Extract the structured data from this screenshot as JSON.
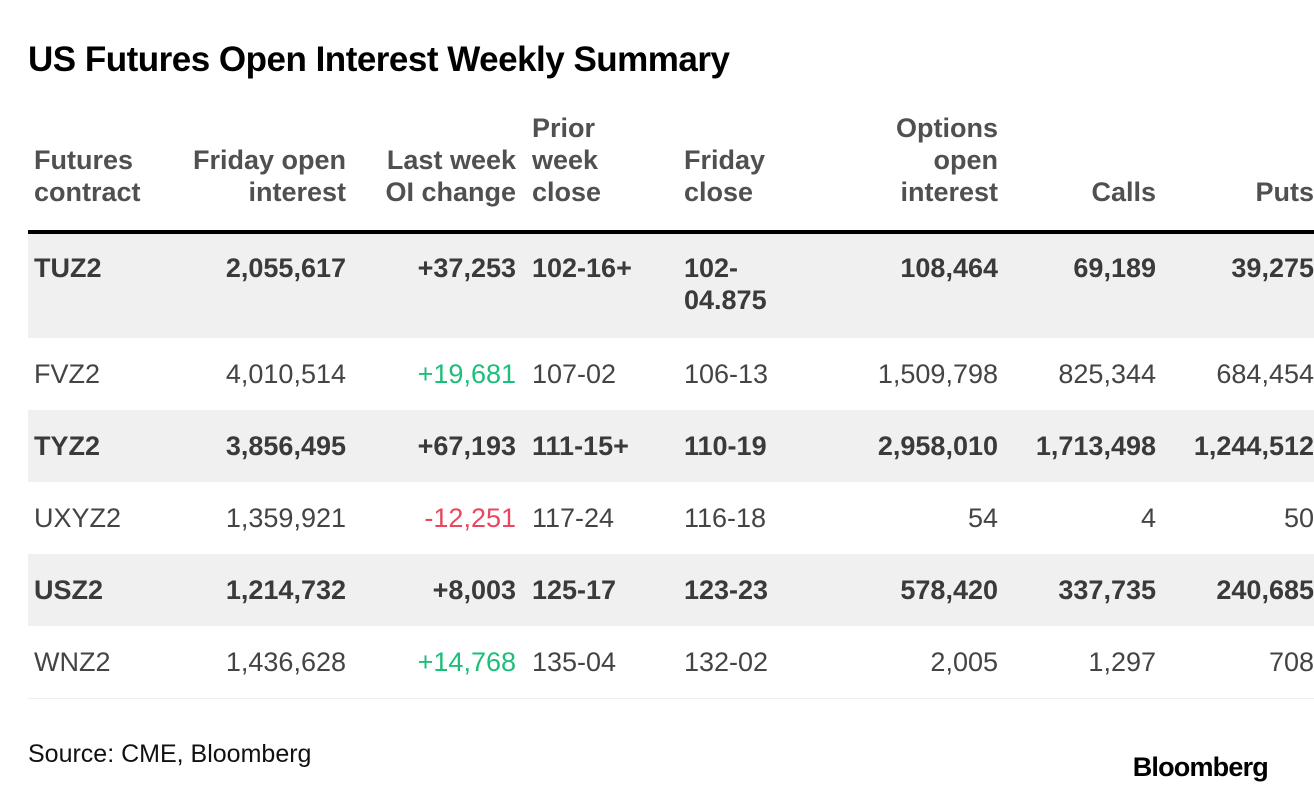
{
  "title": "US Futures Open Interest Weekly Summary",
  "source": "Source: CME, Bloomberg",
  "logo_text": "Bloomberg",
  "colors": {
    "positive": "#1bbf7a",
    "negative": "#e8475f",
    "shaded_row": "#f0f0f0"
  },
  "chart_data": {
    "type": "table",
    "title": "US Futures Open Interest Weekly Summary",
    "columns": [
      [
        "Futures",
        "contract"
      ],
      [
        "Friday open",
        "interest"
      ],
      [
        "Last week",
        "OI change"
      ],
      [
        "Prior",
        "week",
        "close"
      ],
      [
        "Friday",
        "close"
      ],
      [
        "Options",
        "open",
        "interest"
      ],
      [
        "Calls"
      ],
      [
        "Puts"
      ]
    ],
    "rows": [
      {
        "bold": true,
        "shaded": true,
        "change_sign": "pos",
        "cells": [
          "TUZ2",
          "2,055,617",
          "+37,253",
          "102-16+",
          "102-\n04.875",
          "108,464",
          "69,189",
          "39,275"
        ]
      },
      {
        "bold": false,
        "shaded": false,
        "change_sign": "pos",
        "cells": [
          "FVZ2",
          "4,010,514",
          "+19,681",
          "107-02",
          "106-13",
          "1,509,798",
          "825,344",
          "684,454"
        ]
      },
      {
        "bold": true,
        "shaded": true,
        "change_sign": "pos",
        "cells": [
          "TYZ2",
          "3,856,495",
          "+67,193",
          "111-15+",
          "110-19",
          "2,958,010",
          "1,713,498",
          "1,244,512"
        ]
      },
      {
        "bold": false,
        "shaded": false,
        "change_sign": "neg",
        "cells": [
          "UXYZ2",
          "1,359,921",
          "-12,251",
          "117-24",
          "116-18",
          "54",
          "4",
          "50"
        ]
      },
      {
        "bold": true,
        "shaded": true,
        "change_sign": "pos",
        "cells": [
          "USZ2",
          "1,214,732",
          "+8,003",
          "125-17",
          "123-23",
          "578,420",
          "337,735",
          "240,685"
        ]
      },
      {
        "bold": false,
        "shaded": false,
        "change_sign": "pos",
        "cells": [
          "WNZ2",
          "1,436,628",
          "+14,768",
          "135-04",
          "132-02",
          "2,005",
          "1,297",
          "708"
        ]
      }
    ]
  }
}
